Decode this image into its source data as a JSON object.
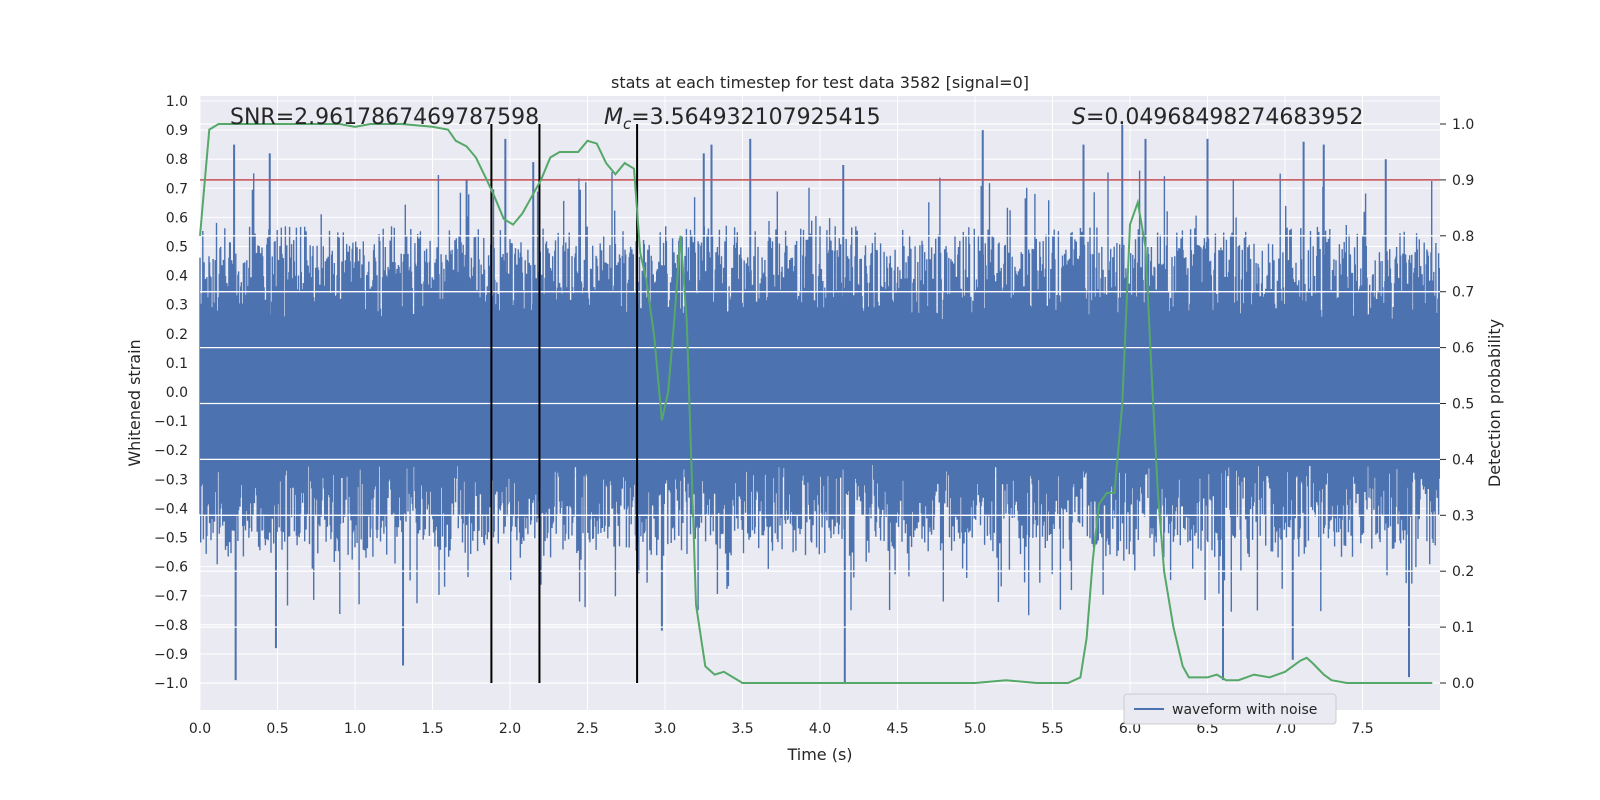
{
  "chart_data": {
    "type": "line",
    "title": "stats at each timestep for test data 3582 [signal=0]",
    "xlabel": "Time (s)",
    "ylabel": "Whitened strain",
    "y2label": "Detection probability",
    "xlim": [
      0,
      8
    ],
    "ylim": [
      -1.09,
      1.0
    ],
    "y2lim": [
      -0.05,
      1.04
    ],
    "x_ticks": [
      0.0,
      0.5,
      1.0,
      1.5,
      2.0,
      2.5,
      3.0,
      3.5,
      4.0,
      4.5,
      5.0,
      5.5,
      6.0,
      6.5,
      7.0,
      7.5
    ],
    "x_tick_labels": [
      "0.0",
      "0.5",
      "1.0",
      "1.5",
      "2.0",
      "2.5",
      "3.0",
      "3.5",
      "4.0",
      "4.5",
      "5.0",
      "5.5",
      "6.0",
      "6.5",
      "7.0",
      "7.5"
    ],
    "y_ticks": [
      1.0,
      0.9,
      0.8,
      0.7,
      0.6,
      0.5,
      0.4,
      0.3,
      0.2,
      0.1,
      0.0,
      -0.1,
      -0.2,
      -0.3,
      -0.4,
      -0.5,
      -0.6,
      -0.7,
      -0.8,
      -0.9,
      -1.0
    ],
    "y_tick_labels": [
      "1.0",
      "0.9",
      "0.8",
      "0.7",
      "0.6",
      "0.5",
      "0.4",
      "0.3",
      "0.2",
      "0.1",
      "0.0",
      "−0.1",
      "−0.2",
      "−0.3",
      "−0.4",
      "−0.5",
      "−0.6",
      "−0.7",
      "−0.8",
      "−0.9",
      "−1.0"
    ],
    "y2_ticks": [
      1.0,
      0.9,
      0.8,
      0.7,
      0.6,
      0.5,
      0.4,
      0.3,
      0.2,
      0.1,
      0.0
    ],
    "y2_tick_labels": [
      "1.0",
      "0.9",
      "0.8",
      "0.7",
      "0.6",
      "0.5",
      "0.4",
      "0.3",
      "0.2",
      "0.1",
      "0.0"
    ],
    "annotations": {
      "snr": "SNR=2.9617867469787598",
      "mc_prefix": "M",
      "mc_sub": "c",
      "mc_value": "=3.564932107925415",
      "s_prefix": "S",
      "s_value": "=0.04968498274683952"
    },
    "threshold": {
      "y2": 0.9,
      "color": "#c44e52"
    },
    "vertical_lines": [
      1.88,
      2.19,
      2.82
    ],
    "legend": {
      "label": "waveform with noise",
      "position": "lower-right"
    },
    "waveform": {
      "name": "waveform with noise",
      "color": "#4c72b0",
      "n_samples": 1800,
      "typical_range": [
        -0.45,
        0.45
      ],
      "max": 0.92,
      "min": -1.0,
      "peaks": [
        [
          0.22,
          0.85
        ],
        [
          0.45,
          0.82
        ],
        [
          1.72,
          0.73
        ],
        [
          1.97,
          0.87
        ],
        [
          2.15,
          0.79
        ],
        [
          3.25,
          0.82
        ],
        [
          3.3,
          0.85
        ],
        [
          3.55,
          0.87
        ],
        [
          4.15,
          0.78
        ],
        [
          5.05,
          0.9
        ],
        [
          5.7,
          0.85
        ],
        [
          5.95,
          0.92
        ],
        [
          6.1,
          0.87
        ],
        [
          6.5,
          0.87
        ],
        [
          7.12,
          0.86
        ],
        [
          7.25,
          0.85
        ],
        [
          7.65,
          0.8
        ]
      ],
      "troughs": [
        [
          0.23,
          -0.99
        ],
        [
          0.49,
          -0.88
        ],
        [
          1.31,
          -0.94
        ],
        [
          4.16,
          -1.0
        ],
        [
          6.6,
          -0.99
        ],
        [
          7.05,
          -0.92
        ],
        [
          7.8,
          -0.98
        ],
        [
          2.98,
          -0.82
        ]
      ]
    },
    "detection_probability": {
      "name": "detection probability",
      "color": "#55a868",
      "x": [
        0.0,
        0.06,
        0.12,
        0.2,
        0.3,
        0.5,
        0.7,
        0.9,
        1.0,
        1.1,
        1.3,
        1.5,
        1.6,
        1.65,
        1.72,
        1.78,
        1.85,
        1.9,
        1.96,
        2.02,
        2.08,
        2.14,
        2.2,
        2.26,
        2.32,
        2.38,
        2.44,
        2.5,
        2.56,
        2.62,
        2.68,
        2.74,
        2.8,
        2.84,
        2.88,
        2.93,
        2.98,
        3.02,
        3.06,
        3.1,
        3.14,
        3.2,
        3.26,
        3.32,
        3.38,
        3.44,
        3.5,
        3.6,
        3.8,
        4.0,
        4.2,
        4.4,
        4.6,
        4.8,
        5.0,
        5.2,
        5.4,
        5.6,
        5.68,
        5.72,
        5.76,
        5.8,
        5.85,
        5.9,
        5.95,
        6.0,
        6.05,
        6.1,
        6.14,
        6.18,
        6.22,
        6.28,
        6.34,
        6.38,
        6.44,
        6.5,
        6.56,
        6.62,
        6.7,
        6.8,
        6.9,
        7.0,
        7.1,
        7.14,
        7.18,
        7.25,
        7.3,
        7.4,
        7.6,
        7.8,
        7.95
      ],
      "y": [
        0.8,
        0.99,
        1.0,
        1.0,
        1.0,
        1.0,
        1.0,
        1.0,
        0.995,
        1.0,
        1.0,
        0.995,
        0.99,
        0.97,
        0.96,
        0.94,
        0.9,
        0.87,
        0.83,
        0.82,
        0.84,
        0.87,
        0.9,
        0.94,
        0.95,
        0.95,
        0.95,
        0.97,
        0.965,
        0.93,
        0.91,
        0.93,
        0.92,
        0.77,
        0.72,
        0.62,
        0.47,
        0.52,
        0.65,
        0.8,
        0.65,
        0.14,
        0.03,
        0.015,
        0.02,
        0.01,
        0.0,
        0.0,
        0.0,
        0.0,
        0.0,
        0.0,
        0.0,
        0.0,
        0.0,
        0.005,
        0.0,
        0.0,
        0.01,
        0.08,
        0.22,
        0.32,
        0.34,
        0.34,
        0.5,
        0.82,
        0.86,
        0.78,
        0.55,
        0.34,
        0.2,
        0.1,
        0.03,
        0.01,
        0.01,
        0.01,
        0.015,
        0.005,
        0.005,
        0.015,
        0.01,
        0.02,
        0.04,
        0.045,
        0.035,
        0.015,
        0.005,
        0.0,
        0.0,
        0.0,
        0.0
      ]
    }
  }
}
